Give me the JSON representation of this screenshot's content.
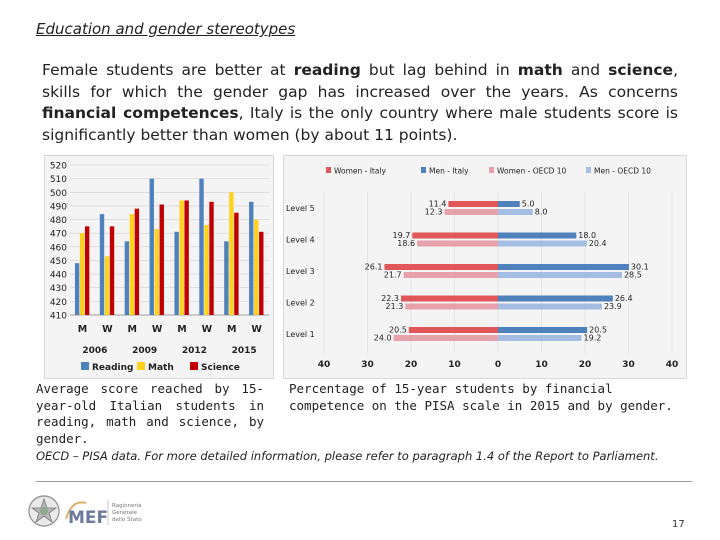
{
  "title": "Education and gender stereotypes",
  "intro": {
    "t1": "Female students are better at ",
    "b1": "reading",
    "t2": " but lag behind in ",
    "b2": "math",
    "t3": " and ",
    "b3": "science",
    "t4": ", skills for which the gender gap has increased over the years. As concerns ",
    "b4": "financial competences",
    "t5": ", Italy is the only country where male students score is significantly better than women (by about 11 points)."
  },
  "captions": {
    "left": "Average score reached by 15-year-old Italian students in reading, math and science, by gender.",
    "right": "Percentage of 15-year students by financial competence on the PISA scale in 2015 and by gender."
  },
  "source": "OECD – PISA data. For more detailed information, please refer to paragraph 1.4 of the Report to Parliament.",
  "logo": {
    "text": "MEF",
    "subtitle": [
      "Ragioneria",
      "Generale",
      "dello Stato"
    ]
  },
  "page_number": "17",
  "chart_data": [
    {
      "type": "bar",
      "title": "",
      "ylim": [
        410,
        520
      ],
      "yticks": [
        520,
        510,
        500,
        490,
        480,
        470,
        460,
        450,
        440,
        430,
        420,
        410
      ],
      "categories": [
        "M",
        "W",
        "M",
        "W",
        "M",
        "W",
        "M",
        "W"
      ],
      "groups": [
        "2006",
        "2009",
        "2012",
        "2015"
      ],
      "series": [
        {
          "name": "Reading",
          "color": "#4f81bd",
          "values": [
            448,
            484,
            464,
            510,
            471,
            510,
            464,
            493
          ]
        },
        {
          "name": "Math",
          "color": "#ffd21f",
          "values": [
            470,
            453,
            484,
            473,
            494,
            476,
            500,
            480
          ]
        },
        {
          "name": "Science",
          "color": "#c00000",
          "values": [
            475,
            475,
            488,
            491,
            494,
            493,
            485,
            471
          ]
        }
      ]
    },
    {
      "type": "bar",
      "orientation": "horizontal",
      "title": "",
      "categories": [
        "Level 5",
        "Level 4",
        "Level 3",
        "Level 2",
        "Level 1"
      ],
      "xticks": [
        "40",
        "30",
        "20",
        "10",
        "0",
        "10",
        "20",
        "30",
        "40"
      ],
      "xlim": [
        -40,
        40
      ],
      "series": [
        {
          "name": "Women - Italy",
          "color": "#e15759",
          "side": "left",
          "values": [
            11.4,
            19.7,
            26.1,
            22.3,
            20.5
          ]
        },
        {
          "name": "Men - Italy",
          "color": "#4f81bd",
          "side": "right",
          "values": [
            5.0,
            18.0,
            30.1,
            26.4,
            20.5
          ]
        },
        {
          "name": "Women - OECD 10",
          "color": "#e6a1ab",
          "side": "left",
          "values": [
            12.3,
            18.6,
            21.7,
            21.3,
            24.0
          ]
        },
        {
          "name": "Men - OECD 10",
          "color": "#a5bde3",
          "side": "right",
          "values": [
            8.0,
            20.4,
            28.5,
            23.9,
            19.2
          ]
        }
      ],
      "labels": {
        "women_italy": [
          "11.4",
          "19.7",
          "26.1",
          "22.3",
          "20.5"
        ],
        "men_italy": [
          "5.0",
          "18.0",
          "30.1",
          "26.4",
          "20.5"
        ],
        "women_oecd": [
          "12.3",
          "18.6",
          "21.7",
          "21.3",
          "24.0"
        ],
        "men_oecd": [
          "8.0",
          "20.4",
          "28.5",
          "23.9",
          "19.2"
        ]
      }
    }
  ]
}
